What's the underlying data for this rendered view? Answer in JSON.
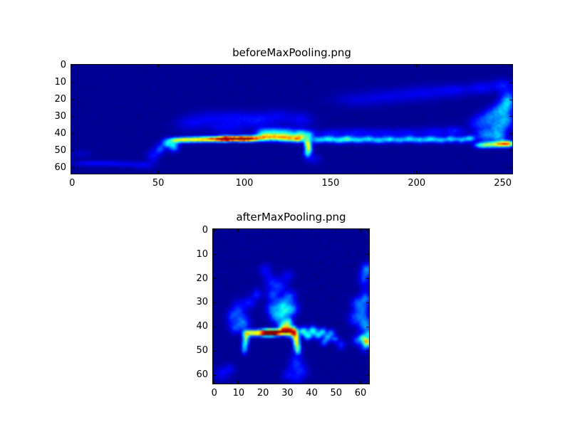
{
  "figure": {
    "background": "#ffffff",
    "spine_color": "#000000",
    "tick_color": "#000000",
    "label_color": "#000000"
  },
  "chart_data": [
    {
      "type": "heatmap",
      "title": "beforeMaxPooling.png",
      "colormap": "jet",
      "grid": {
        "cols": 256,
        "rows": 64
      },
      "x_extent": [
        -0.5,
        255.5
      ],
      "y_extent": [
        -0.5,
        63.5
      ],
      "xticks": [
        0,
        50,
        100,
        150,
        200,
        250
      ],
      "yticks": [
        0,
        10,
        20,
        30,
        40,
        50,
        60
      ],
      "legend": "none",
      "grid_lines": false,
      "base_value": 0.02,
      "blobs": [
        [
          47,
          53,
          2.5,
          2.5,
          0.12
        ],
        [
          51,
          49,
          2,
          2,
          0.18
        ],
        [
          55,
          45.5,
          2,
          1.8,
          0.3
        ],
        [
          59,
          47.5,
          2,
          2,
          0.3
        ],
        [
          60,
          43.8,
          2.5,
          1.1,
          0.45
        ],
        [
          65,
          43.6,
          2.5,
          1.1,
          0.5
        ],
        [
          70,
          43.5,
          2.5,
          1.1,
          0.5
        ],
        [
          75,
          43.4,
          2.5,
          1.1,
          0.55
        ],
        [
          80,
          43.2,
          2.5,
          1.1,
          0.62
        ],
        [
          85,
          43.2,
          2.5,
          1.1,
          0.7
        ],
        [
          89.5,
          43,
          2.2,
          1.1,
          1.05
        ],
        [
          93.5,
          43,
          1.8,
          1,
          0.8
        ],
        [
          98,
          43,
          2.2,
          1.1,
          1.05
        ],
        [
          102.5,
          43,
          2.2,
          1.1,
          0.8
        ],
        [
          107,
          42.8,
          2.5,
          1.2,
          0.62
        ],
        [
          112,
          42.3,
          2.5,
          1.4,
          0.5
        ],
        [
          117,
          42,
          2.5,
          1.5,
          0.48
        ],
        [
          122,
          42.4,
          2.5,
          1.5,
          0.52
        ],
        [
          127,
          42.8,
          2.5,
          1.4,
          0.5
        ],
        [
          131.5,
          43,
          2.2,
          1.4,
          0.55
        ],
        [
          111,
          39.5,
          3,
          1.8,
          0.28
        ],
        [
          118,
          38.8,
          3.5,
          1.8,
          0.26
        ],
        [
          125,
          39.5,
          3,
          1.8,
          0.28
        ],
        [
          132,
          40,
          2.5,
          1.8,
          0.3
        ],
        [
          137,
          41,
          2.5,
          2,
          0.32
        ],
        [
          136.5,
          45.5,
          1.4,
          2,
          0.42
        ],
        [
          137.5,
          48.5,
          1.4,
          2.2,
          0.4
        ],
        [
          136.5,
          51.5,
          1.4,
          1.8,
          0.26
        ],
        [
          143,
          43.8,
          2.5,
          1.3,
          0.3
        ],
        [
          149,
          43.3,
          2.5,
          1.3,
          0.34
        ],
        [
          155,
          44,
          2.5,
          1.3,
          0.3
        ],
        [
          160,
          43.2,
          2.5,
          1.3,
          0.36
        ],
        [
          166,
          43.8,
          2.5,
          1.3,
          0.3
        ],
        [
          172,
          43.3,
          2.5,
          1.3,
          0.3
        ],
        [
          178,
          44,
          2.5,
          1.3,
          0.28
        ],
        [
          184,
          43.4,
          2.5,
          1.3,
          0.3
        ],
        [
          190,
          43.8,
          2.5,
          1.3,
          0.26
        ],
        [
          196,
          43.2,
          2.5,
          1.3,
          0.3
        ],
        [
          202,
          43.8,
          2.5,
          1.3,
          0.28
        ],
        [
          208,
          43.3,
          2.5,
          1.3,
          0.32
        ],
        [
          214,
          43.8,
          2.5,
          1.3,
          0.28
        ],
        [
          220,
          43.2,
          2.2,
          1.3,
          0.3
        ],
        [
          226,
          43.6,
          2.2,
          1.3,
          0.28
        ],
        [
          231,
          42.8,
          2,
          1.3,
          0.3
        ],
        [
          150,
          40,
          6,
          2,
          0.1
        ],
        [
          165,
          39.5,
          6,
          2,
          0.1
        ],
        [
          180,
          39.8,
          6,
          2,
          0.09
        ],
        [
          195,
          39.5,
          6,
          2,
          0.09
        ],
        [
          210,
          39,
          5,
          2,
          0.1
        ],
        [
          222,
          38.5,
          4,
          2,
          0.12
        ],
        [
          68,
          34,
          6,
          3,
          0.08
        ],
        [
          80,
          31,
          7,
          3,
          0.08
        ],
        [
          95,
          31,
          7,
          3,
          0.09
        ],
        [
          108,
          32,
          6,
          3,
          0.1
        ],
        [
          120,
          30,
          6,
          3,
          0.08
        ],
        [
          133,
          32,
          5,
          3,
          0.09
        ],
        [
          90,
          37,
          8,
          2.5,
          0.08
        ],
        [
          165,
          20,
          10,
          3,
          0.06
        ],
        [
          185,
          18,
          10,
          3,
          0.07
        ],
        [
          205,
          16,
          9,
          3,
          0.08
        ],
        [
          222,
          14.5,
          7,
          2.5,
          0.09
        ],
        [
          238,
          13,
          5,
          2.5,
          0.1
        ],
        [
          250,
          11.5,
          4,
          2.5,
          0.12
        ],
        [
          253,
          18,
          3,
          3,
          0.12
        ],
        [
          236,
          34,
          4,
          3,
          0.15
        ],
        [
          243,
          30,
          4,
          3,
          0.2
        ],
        [
          249,
          26,
          3.5,
          3,
          0.22
        ],
        [
          253,
          22,
          3,
          3,
          0.22
        ],
        [
          247,
          36,
          4,
          2.5,
          0.2
        ],
        [
          252,
          32,
          3,
          3,
          0.22
        ],
        [
          240,
          41,
          4,
          2.5,
          0.22
        ],
        [
          248,
          41.5,
          3,
          2.5,
          0.25
        ],
        [
          237,
          46.8,
          2.5,
          1.2,
          0.35
        ],
        [
          242,
          46.5,
          2.5,
          1.2,
          0.45
        ],
        [
          247,
          46.3,
          2.2,
          1.2,
          0.5
        ],
        [
          251,
          46,
          2,
          1.2,
          0.62
        ],
        [
          254,
          46,
          1.5,
          1.2,
          0.5
        ],
        [
          8,
          57.5,
          6,
          1.2,
          0.07
        ],
        [
          20,
          57.5,
          7,
          1.2,
          0.08
        ],
        [
          32,
          58,
          6,
          1.2,
          0.07
        ],
        [
          42,
          58.5,
          4,
          1.5,
          0.08
        ],
        [
          140,
          55,
          3,
          2,
          0.08
        ],
        [
          5,
          52,
          4,
          1.5,
          0.05
        ]
      ]
    },
    {
      "type": "heatmap",
      "title": "afterMaxPooling.png",
      "colormap": "jet",
      "grid": {
        "cols": 64,
        "rows": 64
      },
      "x_extent": [
        -0.5,
        63.5
      ],
      "y_extent": [
        -0.5,
        63.5
      ],
      "xticks": [
        0,
        10,
        20,
        30,
        40,
        50,
        60
      ],
      "yticks": [
        0,
        10,
        20,
        30,
        40,
        50,
        60
      ],
      "legend": "none",
      "grid_lines": false,
      "base_value": 0.02,
      "blobs": [
        [
          13.5,
          42.6,
          1.2,
          0.9,
          0.5
        ],
        [
          16,
          42.5,
          1.3,
          0.9,
          0.5
        ],
        [
          18.5,
          42.5,
          1.3,
          0.9,
          0.55
        ],
        [
          20.5,
          42.5,
          1,
          0.9,
          0.75
        ],
        [
          22,
          42.4,
          0.9,
          0.85,
          1.05
        ],
        [
          23.1,
          42.4,
          0.8,
          0.8,
          0.9
        ],
        [
          24.2,
          42.4,
          0.9,
          0.85,
          1.05
        ],
        [
          26,
          42.3,
          1,
          0.9,
          0.75
        ],
        [
          27.8,
          42,
          1.2,
          1,
          0.6
        ],
        [
          29.5,
          41.6,
          1.2,
          1.2,
          0.5
        ],
        [
          31,
          41.8,
          1.2,
          1.3,
          0.55
        ],
        [
          32.8,
          42.2,
          1,
          1.4,
          0.72
        ],
        [
          33.6,
          45,
          0.9,
          1.5,
          0.55
        ],
        [
          34,
          47.8,
          0.9,
          1.5,
          0.42
        ],
        [
          34.3,
          50,
          0.9,
          1.2,
          0.25
        ],
        [
          13,
          44.8,
          0.9,
          1.3,
          0.4
        ],
        [
          12.6,
          47.5,
          0.9,
          1.5,
          0.3
        ],
        [
          12.4,
          50,
          0.8,
          1.2,
          0.18
        ],
        [
          28.5,
          39.5,
          1.5,
          1.3,
          0.35
        ],
        [
          30.5,
          38,
          1.3,
          1.3,
          0.32
        ],
        [
          36.5,
          41.8,
          1.2,
          1.2,
          0.4
        ],
        [
          38.5,
          43.8,
          1.1,
          1.1,
          0.35
        ],
        [
          40.5,
          41.5,
          1.2,
          1.2,
          0.38
        ],
        [
          42.5,
          43.5,
          1.1,
          1.1,
          0.3
        ],
        [
          44.5,
          42,
          1.1,
          1.1,
          0.32
        ],
        [
          46.5,
          44.5,
          1,
          1,
          0.28
        ],
        [
          48,
          42.5,
          1,
          1,
          0.25
        ],
        [
          45,
          46.5,
          1,
          1,
          0.22
        ],
        [
          49.5,
          45,
          1,
          1,
          0.2
        ],
        [
          62.6,
          46,
          0.9,
          1.1,
          0.62
        ],
        [
          61,
          44.5,
          0.9,
          1,
          0.3
        ],
        [
          63,
          43,
          0.8,
          1,
          0.25
        ],
        [
          26,
          36,
          2,
          1.8,
          0.25
        ],
        [
          29,
          34,
          1.8,
          1.8,
          0.25
        ],
        [
          24,
          32.5,
          1.8,
          1.8,
          0.22
        ],
        [
          28,
          30.5,
          1.8,
          1.8,
          0.25
        ],
        [
          32,
          32.5,
          1.8,
          1.8,
          0.22
        ],
        [
          31,
          27.5,
          1.8,
          1.8,
          0.18
        ],
        [
          24,
          27,
          1.8,
          1.8,
          0.16
        ],
        [
          10,
          33.5,
          2,
          3,
          0.16
        ],
        [
          12,
          38.5,
          1.8,
          2,
          0.2
        ],
        [
          8.5,
          40.5,
          1.6,
          1.6,
          0.15
        ],
        [
          14.5,
          30,
          1.6,
          1.6,
          0.13
        ],
        [
          7,
          36,
          1.5,
          2,
          0.12
        ],
        [
          17.5,
          26.5,
          1.5,
          1.5,
          0.12
        ],
        [
          23.5,
          21.5,
          2.2,
          2,
          0.12
        ],
        [
          27,
          23.5,
          2,
          1.8,
          0.12
        ],
        [
          21,
          16.5,
          1.8,
          1.8,
          0.1
        ],
        [
          30,
          19,
          1.8,
          1.8,
          0.09
        ],
        [
          60.5,
          33,
          2,
          3,
          0.2
        ],
        [
          62,
          39.5,
          1.8,
          2.5,
          0.24
        ],
        [
          57.5,
          36.5,
          1.8,
          2,
          0.14
        ],
        [
          61.5,
          20,
          1.6,
          2.5,
          0.16
        ],
        [
          62.5,
          16,
          1.4,
          1.8,
          0.2
        ],
        [
          59,
          45.5,
          1.5,
          1.5,
          0.2
        ],
        [
          62,
          28,
          1.6,
          2,
          0.18
        ],
        [
          58,
          30,
          1.5,
          1.5,
          0.12
        ],
        [
          62,
          48,
          1.3,
          1.5,
          0.22
        ],
        [
          33.5,
          55,
          2,
          2.5,
          0.14
        ],
        [
          36,
          58.5,
          1.8,
          1.8,
          0.11
        ],
        [
          30.5,
          60,
          1.8,
          1.8,
          0.1
        ],
        [
          34,
          61.5,
          1.5,
          1.5,
          0.08
        ],
        [
          3,
          59.5,
          2,
          2,
          0.1
        ],
        [
          6.5,
          57.5,
          1.6,
          1.6,
          0.08
        ],
        [
          52,
          47.5,
          1.3,
          1.3,
          0.14
        ]
      ]
    }
  ]
}
